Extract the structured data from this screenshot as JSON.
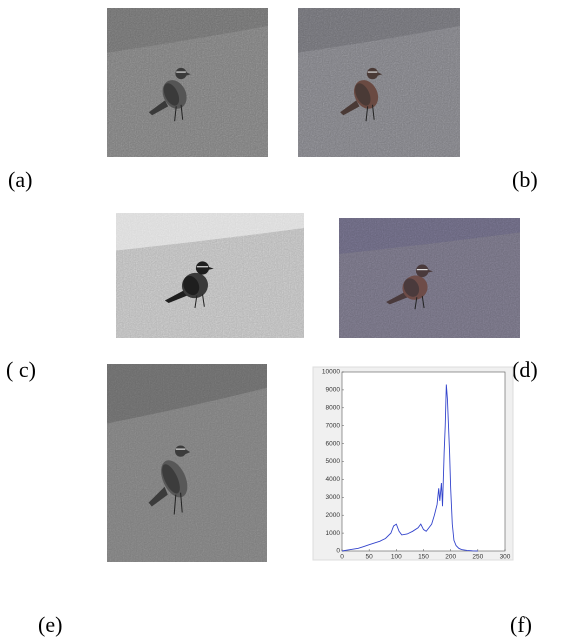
{
  "panels": [
    {
      "label": "(a)"
    },
    {
      "label": "(b)"
    },
    {
      "label": "( c)"
    },
    {
      "label": "(d)"
    },
    {
      "label": "(e)"
    },
    {
      "label": "(f)"
    }
  ],
  "chart_data": {
    "type": "line",
    "x": [
      0,
      10,
      20,
      30,
      40,
      50,
      60,
      70,
      80,
      90,
      95,
      100,
      105,
      110,
      120,
      130,
      140,
      145,
      150,
      155,
      160,
      165,
      170,
      175,
      178,
      180,
      183,
      185,
      188,
      190,
      192,
      194,
      196,
      198,
      200,
      203,
      206,
      210,
      215,
      220,
      230,
      240,
      250
    ],
    "values": [
      0,
      50,
      100,
      150,
      250,
      350,
      450,
      550,
      700,
      1000,
      1400,
      1500,
      1100,
      900,
      950,
      1100,
      1300,
      1500,
      1200,
      1100,
      1300,
      1500,
      2000,
      2600,
      3500,
      2800,
      3800,
      2500,
      5500,
      7000,
      9300,
      8500,
      7000,
      5500,
      3500,
      1500,
      600,
      300,
      150,
      80,
      30,
      10,
      0
    ],
    "color": "#3344cc",
    "xlim": [
      0,
      300
    ],
    "ylim": [
      0,
      10000
    ],
    "xticks": [
      0,
      50,
      100,
      150,
      200,
      250,
      300
    ],
    "yticks": [
      0,
      1000,
      2000,
      3000,
      4000,
      5000,
      6000,
      7000,
      8000,
      9000,
      10000
    ]
  }
}
